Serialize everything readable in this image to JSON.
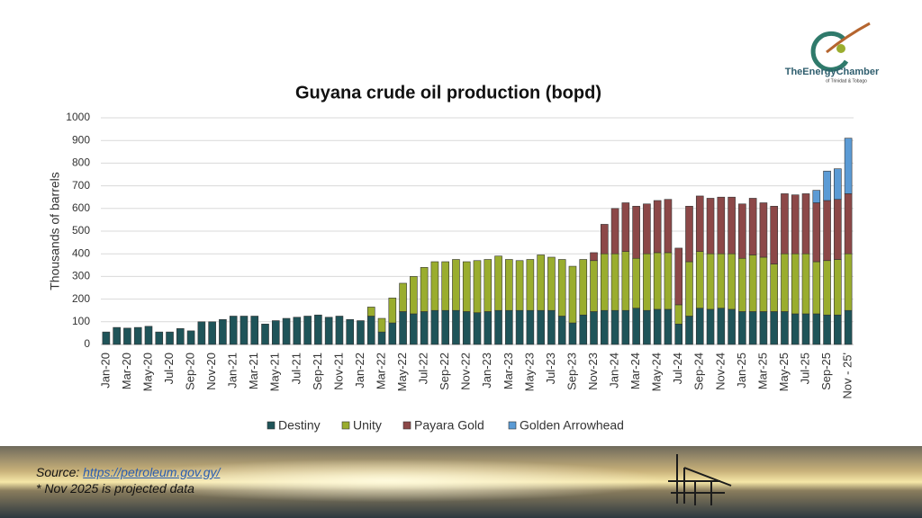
{
  "chart_data": {
    "type": "bar",
    "stacked": true,
    "title": "Guyana crude oil production (bopd)",
    "y_label": "Thousands of barrels",
    "categories": [
      "Jan-20",
      null,
      "Mar-20",
      null,
      "May-20",
      null,
      "Jul-20",
      null,
      "Sep-20",
      null,
      "Nov-20",
      null,
      "Jan-21",
      null,
      "Mar-21",
      null,
      "May-21",
      null,
      "Jul-21",
      null,
      "Sep-21",
      null,
      "Nov-21",
      null,
      "Jan-22",
      null,
      "Mar-22",
      null,
      "May-22",
      null,
      "Jul-22",
      null,
      "Sep-22",
      null,
      "Nov-22",
      null,
      "Jan-23",
      null,
      "Mar-23",
      null,
      "May-23",
      null,
      "Jul-23",
      null,
      "Sep-23",
      null,
      "Nov-23",
      null,
      "Jan-24",
      null,
      "Mar-24",
      null,
      "May-24",
      null,
      "Jul-24",
      null,
      "Sep-24",
      null,
      "Nov-24",
      null,
      "Jan-25",
      null,
      "Mar-25",
      null,
      "May-25",
      null,
      "Jul-25",
      null,
      "Sep-25",
      null,
      "Nov - 25'"
    ],
    "series": [
      {
        "name": "Destiny",
        "color": "#1f5459",
        "values": [
          55,
          75,
          72,
          75,
          80,
          55,
          55,
          70,
          60,
          100,
          100,
          110,
          125,
          125,
          125,
          90,
          105,
          115,
          120,
          125,
          130,
          120,
          125,
          110,
          105,
          125,
          55,
          95,
          145,
          135,
          145,
          150,
          150,
          150,
          145,
          140,
          145,
          150,
          150,
          150,
          150,
          150,
          150,
          125,
          95,
          130,
          145,
          150,
          150,
          150,
          160,
          150,
          155,
          155,
          90,
          125,
          160,
          155,
          160,
          155,
          145,
          145,
          145,
          145,
          145,
          135,
          135,
          135,
          130,
          130,
          150
        ]
      },
      {
        "name": "Unity",
        "color": "#9aad2e",
        "values": [
          null,
          null,
          null,
          null,
          null,
          null,
          null,
          null,
          null,
          null,
          null,
          null,
          null,
          null,
          null,
          null,
          null,
          null,
          null,
          null,
          null,
          null,
          null,
          null,
          null,
          40,
          60,
          110,
          125,
          165,
          195,
          215,
          215,
          225,
          220,
          230,
          230,
          240,
          225,
          220,
          225,
          245,
          235,
          250,
          250,
          245,
          225,
          250,
          250,
          260,
          220,
          250,
          250,
          250,
          85,
          240,
          250,
          245,
          240,
          245,
          235,
          250,
          240,
          210,
          255,
          265,
          265,
          230,
          240,
          245,
          250
        ]
      },
      {
        "name": "Payara Gold",
        "color": "#8c4848",
        "values": [
          null,
          null,
          null,
          null,
          null,
          null,
          null,
          null,
          null,
          null,
          null,
          null,
          null,
          null,
          null,
          null,
          null,
          null,
          null,
          null,
          null,
          null,
          null,
          null,
          null,
          null,
          null,
          null,
          null,
          null,
          null,
          null,
          null,
          null,
          null,
          null,
          null,
          null,
          null,
          null,
          null,
          null,
          null,
          null,
          null,
          null,
          35,
          130,
          200,
          215,
          230,
          220,
          230,
          235,
          250,
          245,
          245,
          245,
          250,
          250,
          240,
          250,
          240,
          255,
          265,
          260,
          265,
          260,
          265,
          265,
          265
        ]
      },
      {
        "name": "Golden Arrowhead",
        "color": "#5b9bd5",
        "values": [
          null,
          null,
          null,
          null,
          null,
          null,
          null,
          null,
          null,
          null,
          null,
          null,
          null,
          null,
          null,
          null,
          null,
          null,
          null,
          null,
          null,
          null,
          null,
          null,
          null,
          null,
          null,
          null,
          null,
          null,
          null,
          null,
          null,
          null,
          null,
          null,
          null,
          null,
          null,
          null,
          null,
          null,
          null,
          null,
          null,
          null,
          null,
          null,
          null,
          null,
          null,
          null,
          null,
          null,
          null,
          null,
          null,
          null,
          null,
          null,
          null,
          null,
          null,
          null,
          null,
          null,
          null,
          55,
          130,
          135,
          245
        ]
      }
    ],
    "ylim": [
      0,
      1000
    ],
    "yticks": [
      0,
      100,
      200,
      300,
      400,
      500,
      600,
      700,
      800,
      900,
      1000
    ],
    "grid": true,
    "legend": "bottom"
  },
  "logo": {
    "name": "TheEnergyChamber",
    "subtitle": "of Trinidad & Tobago"
  },
  "footer": {
    "source_label": "Source:",
    "source_url": "https://petroleum.gov.gy/",
    "note": "* Nov 2025 is projected data"
  }
}
